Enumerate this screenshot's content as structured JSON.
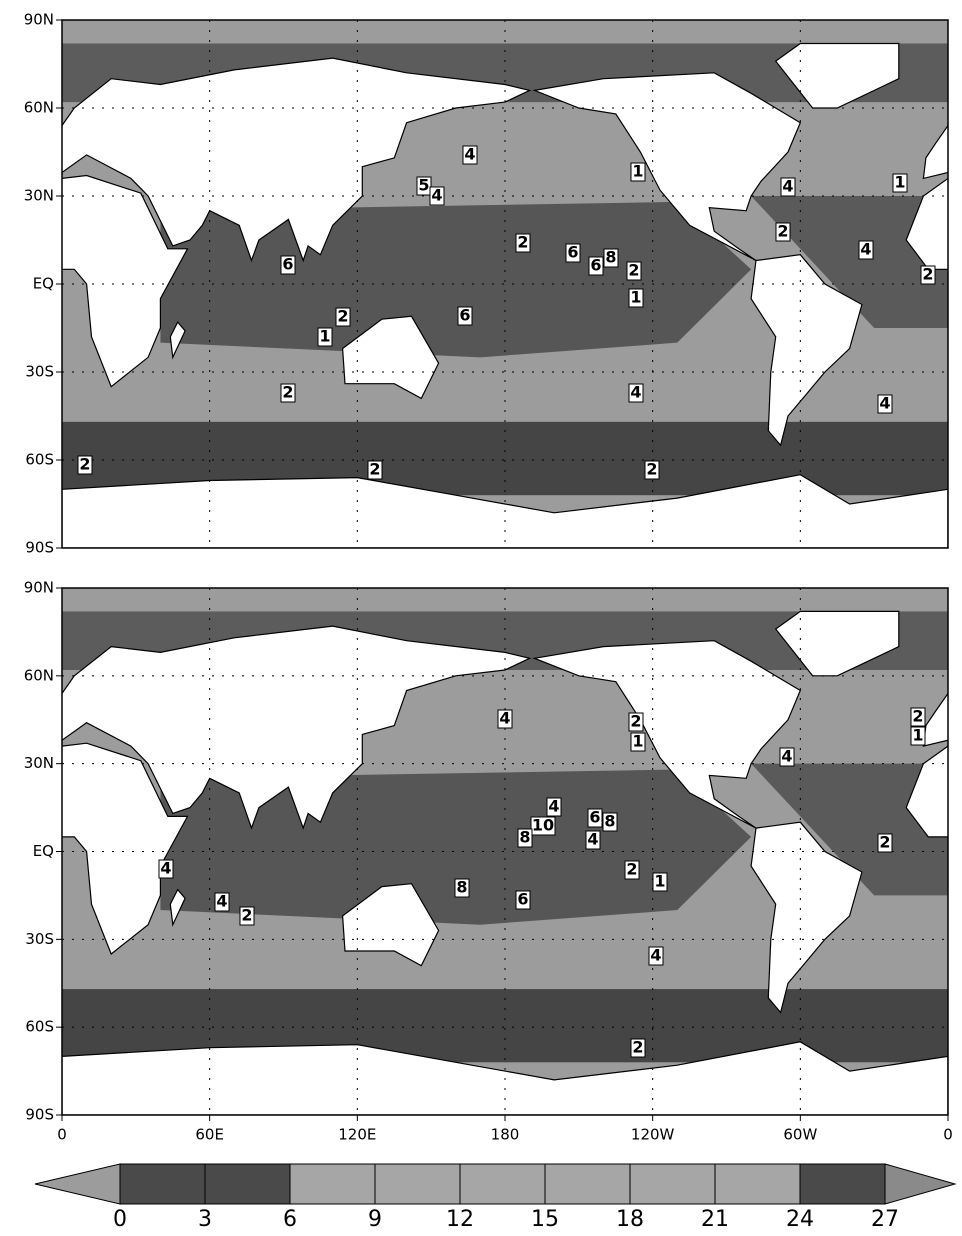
{
  "panels": [
    {
      "lat_labels": [
        "90N",
        "60N",
        "30N",
        "EQ",
        "30S",
        "60S",
        "90S"
      ],
      "contour_labels": [
        "4",
        "1",
        "5",
        "4",
        "4",
        "1",
        "2",
        "6",
        "6",
        "8",
        "2",
        "1",
        "2",
        "4",
        "2",
        "6",
        "2",
        "1",
        "6",
        "2",
        "4",
        "4",
        "2",
        "2",
        "2"
      ]
    },
    {
      "lat_labels": [
        "90N",
        "60N",
        "30N",
        "EQ",
        "30S",
        "60S",
        "90S"
      ],
      "lon_labels": [
        "0",
        "60E",
        "120E",
        "180",
        "120W",
        "60W",
        "0"
      ],
      "contour_labels": [
        "4",
        "2",
        "1",
        "2",
        "1",
        "4",
        "4",
        "6",
        "8",
        "10",
        "8",
        "4",
        "2",
        "4",
        "2",
        "1",
        "8",
        "6",
        "4",
        "2",
        "4",
        "2"
      ]
    }
  ],
  "colorbar": {
    "labels": [
      "0",
      "3",
      "6",
      "9",
      "12",
      "15",
      "18",
      "21",
      "24",
      "27"
    ]
  }
}
